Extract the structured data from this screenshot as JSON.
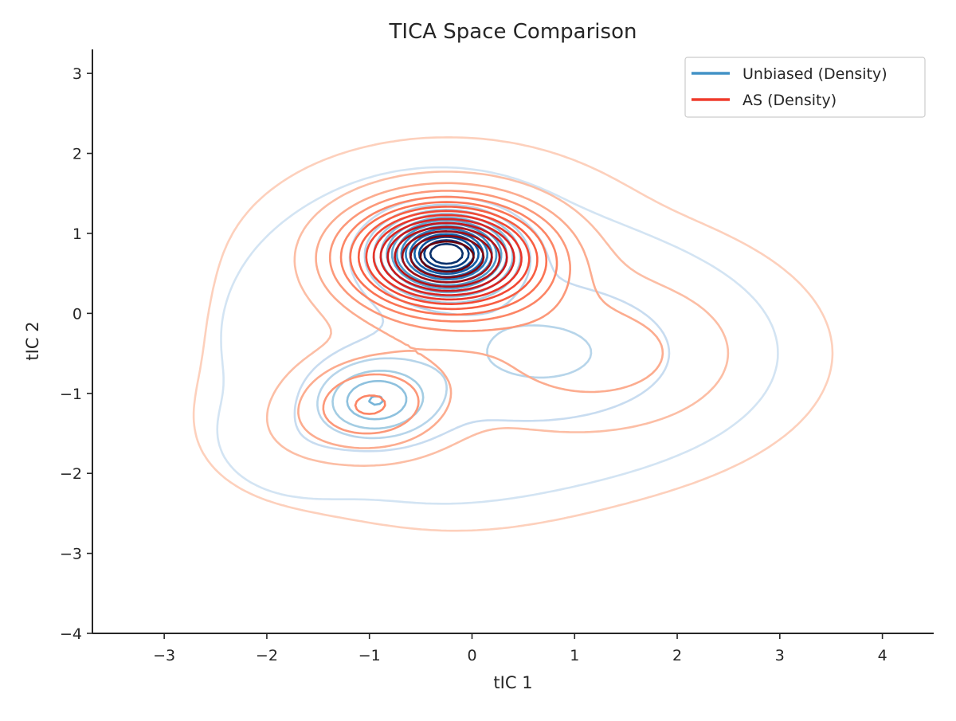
{
  "chart_data": {
    "type": "contour",
    "title": "TICA Space Comparison",
    "xlabel": "tIC 1",
    "ylabel": "tIC 2",
    "xlim": [
      -3.7,
      4.5
    ],
    "ylim": [
      -4.0,
      3.3
    ],
    "xticks": [
      -3,
      -2,
      -1,
      0,
      1,
      2,
      3,
      4
    ],
    "yticks": [
      -4,
      -3,
      -2,
      -1,
      0,
      1,
      2,
      3
    ],
    "xtick_labels": [
      "−3",
      "−2",
      "−1",
      "0",
      "1",
      "2",
      "3",
      "4"
    ],
    "ytick_labels": [
      "−4",
      "−3",
      "−2",
      "−1",
      "0",
      "1",
      "2",
      "3"
    ],
    "grid": false,
    "legend_position": "upper right",
    "series": [
      {
        "name": "Unbiased (Density)",
        "style": "kde-contours",
        "colormap": "Blues",
        "legend_color": "#4292c6",
        "levels": 15,
        "modes": [
          {
            "center": [
              -0.25,
              0.75
            ],
            "sd": [
              0.38,
              0.3
            ],
            "weight": 1.0
          },
          {
            "center": [
              -0.95,
              -1.1
            ],
            "sd": [
              0.38,
              0.32
            ],
            "weight": 0.3
          },
          {
            "center": [
              0.9,
              -0.5
            ],
            "sd": [
              0.95,
              0.65
            ],
            "weight": 0.13
          },
          {
            "center": [
              -0.4,
              -0.3
            ],
            "sd": [
              1.15,
              1.15
            ],
            "weight": 0.06
          },
          {
            "center": [
              -1.7,
              -1.6
            ],
            "sd": [
              0.4,
              0.35
            ],
            "weight": 0.04
          }
        ]
      },
      {
        "name": "AS (Density)",
        "style": "kde-contours",
        "colormap": "Reds",
        "legend_color": "#ef3b2c",
        "levels": 15,
        "modes": [
          {
            "center": [
              -0.25,
              0.72
            ],
            "sd": [
              0.62,
              0.45
            ],
            "weight": 1.0
          },
          {
            "center": [
              -1.0,
              -1.15
            ],
            "sd": [
              0.5,
              0.42
            ],
            "weight": 0.24
          },
          {
            "center": [
              1.35,
              -0.5
            ],
            "sd": [
              0.95,
              0.7
            ],
            "weight": 0.15
          },
          {
            "center": [
              -0.2,
              -0.4
            ],
            "sd": [
              1.35,
              1.3
            ],
            "weight": 0.06
          },
          {
            "center": [
              -1.75,
              -1.5
            ],
            "sd": [
              0.45,
              0.4
            ],
            "weight": 0.04
          }
        ]
      }
    ]
  }
}
